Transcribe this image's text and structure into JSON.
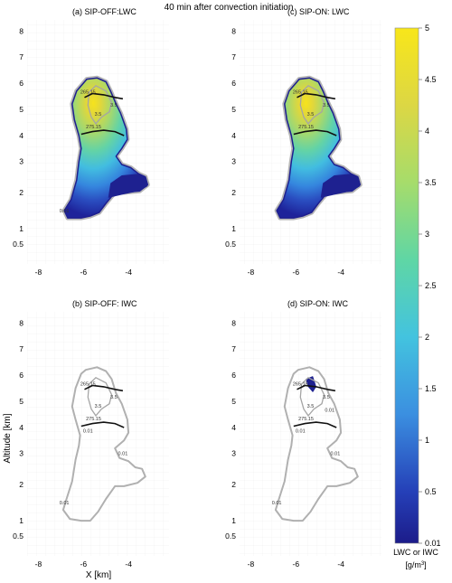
{
  "figure": {
    "title": "40 min after convection initiation",
    "ylabel": "Altitude [km]",
    "xlabel": "X [km]"
  },
  "colorbar": {
    "label_line1": "LWC or IWC",
    "label_line2": "[g/m",
    "label_sup": "3",
    "label_end": "]",
    "ticks": [
      "0.01",
      "0.5",
      "1",
      "1.5",
      "2",
      "2.5",
      "3",
      "3.5",
      "4",
      "4.5",
      "5"
    ],
    "colors": [
      "#1f1f8c",
      "#2e59c9",
      "#3fa8e6",
      "#4fd3b8",
      "#a9dc6a",
      "#e6d83a",
      "#f7e81a"
    ]
  },
  "chart_data": [
    {
      "type": "heatmap",
      "panel_title": "(a) SIP-OFF:LWC",
      "field": "LWC",
      "xlim": [
        -8.5,
        -2.2
      ],
      "ylim": [
        0.2,
        8.4
      ],
      "xticks": [
        "-8",
        "-6",
        "-4"
      ],
      "yticks": [
        "0.5",
        "1",
        "2",
        "3",
        "4",
        "5",
        "6",
        "7",
        "8"
      ],
      "filled": true,
      "max_value": 5,
      "max_location": {
        "x": -5.5,
        "y": 5.5
      },
      "contours": [
        {
          "label": "265.15",
          "kind": "isotherm"
        },
        {
          "label": "275.15",
          "kind": "isotherm"
        },
        {
          "label": "3.5",
          "kind": "value"
        },
        {
          "label": "3.5",
          "kind": "value"
        },
        {
          "label": "0.01",
          "kind": "value"
        }
      ]
    },
    {
      "type": "heatmap",
      "panel_title": "(c) SIP-ON: LWC",
      "field": "LWC",
      "xlim": [
        -8.5,
        -2.2
      ],
      "ylim": [
        0.2,
        8.4
      ],
      "xticks": [
        "-8",
        "-6",
        "-4"
      ],
      "yticks": [
        "0.5",
        "1",
        "2",
        "3",
        "4",
        "5",
        "6",
        "7",
        "8"
      ],
      "filled": true,
      "max_value": 5,
      "max_location": {
        "x": -5.5,
        "y": 5.5
      },
      "contours": [
        {
          "label": "265.15",
          "kind": "isotherm"
        },
        {
          "label": "275.15",
          "kind": "isotherm"
        },
        {
          "label": "3.5",
          "kind": "value"
        },
        {
          "label": "3.5",
          "kind": "value"
        }
      ]
    },
    {
      "type": "heatmap",
      "panel_title": "(b) SIP-OFF: IWC",
      "field": "IWC",
      "xlim": [
        -8.5,
        -2.2
      ],
      "ylim": [
        0.2,
        8.4
      ],
      "xticks": [
        "-8",
        "-6",
        "-4"
      ],
      "yticks": [
        "0.5",
        "1",
        "2",
        "3",
        "4",
        "5",
        "6",
        "7",
        "8"
      ],
      "filled": false,
      "contours": [
        {
          "label": "265.15",
          "kind": "isotherm"
        },
        {
          "label": "275.15",
          "kind": "isotherm"
        },
        {
          "label": "3.5",
          "kind": "value"
        },
        {
          "label": "3.5",
          "kind": "value"
        },
        {
          "label": "0.01",
          "kind": "value"
        },
        {
          "label": "0.01",
          "kind": "value"
        },
        {
          "label": "0.01",
          "kind": "value"
        }
      ]
    },
    {
      "type": "heatmap",
      "panel_title": "(d) SIP-ON: IWC",
      "field": "IWC",
      "xlim": [
        -8.5,
        -2.2
      ],
      "ylim": [
        0.2,
        8.4
      ],
      "xticks": [
        "-8",
        "-6",
        "-4"
      ],
      "yticks": [
        "0.5",
        "1",
        "2",
        "3",
        "4",
        "5",
        "6",
        "7",
        "8"
      ],
      "filled": false,
      "ice_patch": {
        "x": -5.3,
        "y": 5.6
      },
      "contours": [
        {
          "label": "265.15",
          "kind": "isotherm"
        },
        {
          "label": "275.15",
          "kind": "isotherm"
        },
        {
          "label": "3.5",
          "kind": "value"
        },
        {
          "label": "3.5",
          "kind": "value"
        },
        {
          "label": "0.01",
          "kind": "value"
        },
        {
          "label": "0.01",
          "kind": "value"
        },
        {
          "label": "0.01",
          "kind": "value"
        },
        {
          "label": "0.01",
          "kind": "value"
        }
      ]
    }
  ]
}
